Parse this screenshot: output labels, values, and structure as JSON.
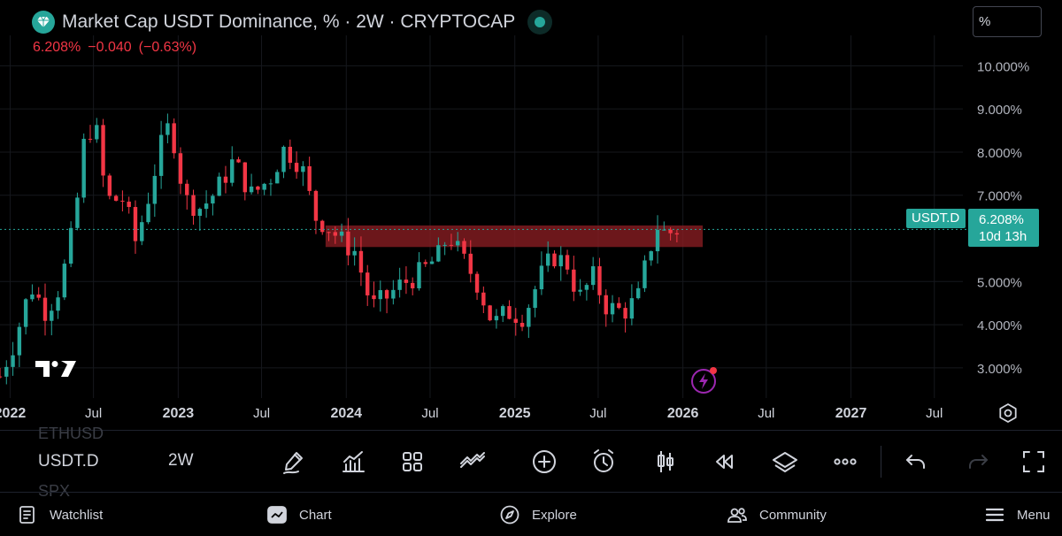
{
  "header": {
    "title": "Market Cap USDT Dominance, % · 2W · CRYPTOCAP",
    "last_value": "6.208%",
    "change": "−0.040",
    "change_pct": "(−0.63%)"
  },
  "scale_mode": "%",
  "price_tag": {
    "symbol": "USDT.D",
    "value": "6.208%",
    "countdown": "10d 13h"
  },
  "colors": {
    "up": "#26a69a",
    "down": "#f23645",
    "zone": "#8b1e23",
    "background": "#000000"
  },
  "chart_data": {
    "type": "candlestick",
    "interval": "2W",
    "y_ticks": [
      "10.000%",
      "9.000%",
      "8.000%",
      "7.000%",
      "5.000%",
      "4.000%",
      "3.000%"
    ],
    "x_ticks": [
      "2022",
      "Jul",
      "2023",
      "Jul",
      "2024",
      "Jul",
      "2025",
      "Jul",
      "2026",
      "Jul",
      "2027",
      "Jul"
    ],
    "x_range": [
      "2021-12-10",
      "2027-09-01"
    ],
    "y_range": [
      2.3,
      10.5
    ],
    "last_price": 6.208,
    "zone": {
      "from": "2023-11-17",
      "to": "2026-02-13",
      "low": 5.8,
      "high": 6.3
    },
    "close_path": [
      [
        "2021-12-10",
        2.8
      ],
      [
        "2022-01-10",
        3.6
      ],
      [
        "2022-02-15",
        4.9
      ],
      [
        "2022-03-20",
        4.3
      ],
      [
        "2022-04-20",
        4.9
      ],
      [
        "2022-05-20",
        6.3
      ],
      [
        "2022-06-15",
        8.6
      ],
      [
        "2022-07-10",
        8.4
      ],
      [
        "2022-07-28",
        6.9
      ],
      [
        "2022-09-05",
        6.9
      ],
      [
        "2022-10-01",
        5.9
      ],
      [
        "2022-11-01",
        7.1
      ],
      [
        "2022-11-20",
        8.0
      ],
      [
        "2022-12-15",
        8.7
      ],
      [
        "2023-01-15",
        6.9
      ],
      [
        "2023-02-20",
        6.7
      ],
      [
        "2023-03-25",
        7.1
      ],
      [
        "2023-05-01",
        7.8
      ],
      [
        "2023-06-10",
        7.0
      ],
      [
        "2023-07-20",
        7.4
      ],
      [
        "2023-08-20",
        8.1
      ],
      [
        "2023-09-25",
        7.7
      ],
      [
        "2023-10-25",
        6.5
      ],
      [
        "2023-11-20",
        6.3
      ],
      [
        "2023-12-25",
        5.9
      ],
      [
        "2024-01-20",
        5.7
      ],
      [
        "2024-02-25",
        4.4
      ],
      [
        "2024-03-25",
        4.6
      ],
      [
        "2024-04-25",
        4.9
      ],
      [
        "2024-06-10",
        5.2
      ],
      [
        "2024-07-20",
        5.6
      ],
      [
        "2024-08-10",
        6.1
      ],
      [
        "2024-09-05",
        5.6
      ],
      [
        "2024-10-10",
        5.0
      ],
      [
        "2024-11-15",
        4.0
      ],
      [
        "2024-12-15",
        4.3
      ],
      [
        "2025-01-20",
        4.2
      ],
      [
        "2025-02-25",
        5.1
      ],
      [
        "2025-03-25",
        5.6
      ],
      [
        "2025-04-25",
        5.4
      ],
      [
        "2025-05-20",
        4.6
      ],
      [
        "2025-06-20",
        5.1
      ],
      [
        "2025-07-20",
        4.4
      ],
      [
        "2025-08-25",
        4.3
      ],
      [
        "2025-09-25",
        4.6
      ],
      [
        "2025-10-15",
        5.5
      ],
      [
        "2025-11-05",
        6.3
      ],
      [
        "2025-11-25",
        6.1
      ],
      [
        "2025-12-20",
        6.2
      ]
    ]
  },
  "toolbar": {
    "symbol_prev": "ETHUSD",
    "symbol": "USDT.D",
    "symbol_next": "SPX",
    "interval": "2W"
  },
  "nav": {
    "watchlist": "Watchlist",
    "chart": "Chart",
    "explore": "Explore",
    "community": "Community",
    "menu": "Menu"
  }
}
